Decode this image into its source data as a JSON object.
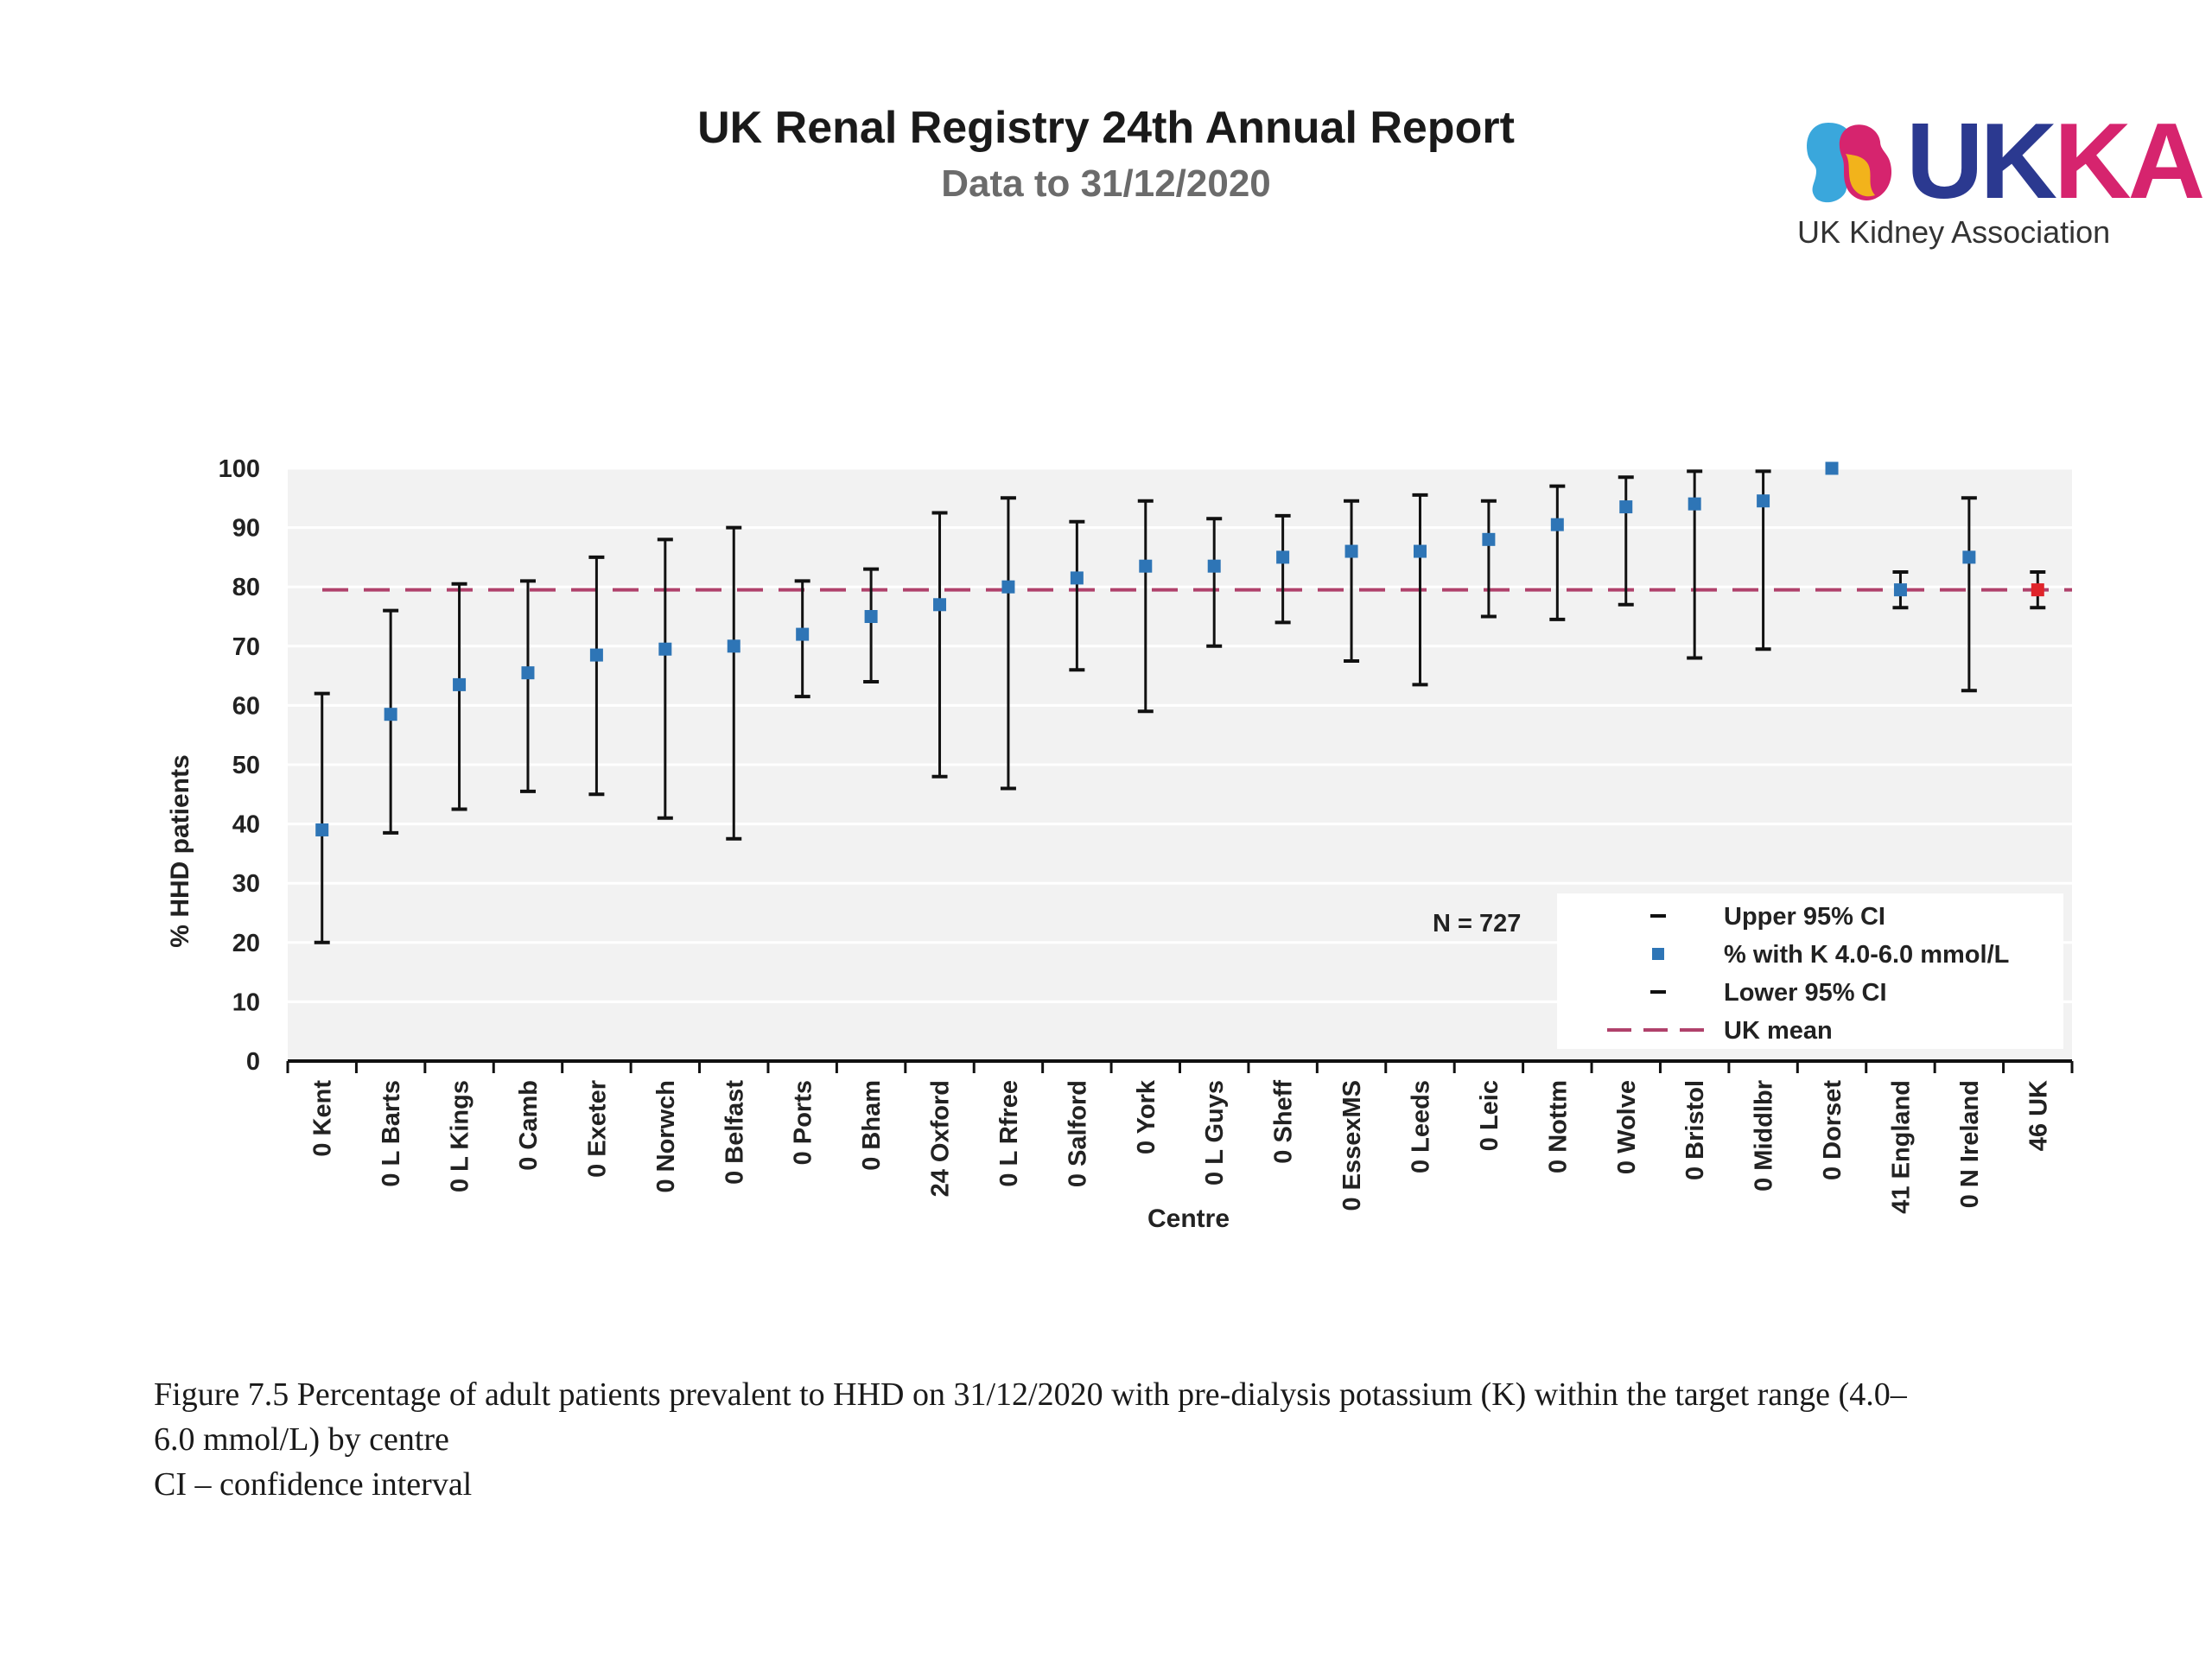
{
  "header": {
    "title": "UK Renal Registry 24th Annual Report",
    "subtitle": "Data to 31/12/2020"
  },
  "logo": {
    "wordmark": "UKKA",
    "name": "UK Kidney Association",
    "colors": [
      "#2b3990",
      "#d6246e",
      "#f2b31b",
      "#3aa7dc"
    ]
  },
  "chart_data": {
    "type": "scatter",
    "ylabel": "% HHD patients",
    "xlabel": "Centre",
    "ylim": [
      0,
      100
    ],
    "yticks": [
      0,
      10,
      20,
      30,
      40,
      50,
      60,
      70,
      80,
      90,
      100
    ],
    "grid": true,
    "legend_position": "bottom-right",
    "annotation": "N = 727",
    "uk_mean": 79.5,
    "categories": [
      "0 Kent",
      "0 L Barts",
      "0 L Kings",
      "0 Camb",
      "0 Exeter",
      "0 Norwch",
      "0 Belfast",
      "0 Ports",
      "0 Bham",
      "24 Oxford",
      "0 L Rfree",
      "0 Salford",
      "0 York",
      "0 L Guys",
      "0 Sheff",
      "0 EssexMS",
      "0 Leeds",
      "0 Leic",
      "0 Nottm",
      "0 Wolve",
      "0 Bristol",
      "0 Middlbr",
      "0 Dorset",
      "41 England",
      "0 N Ireland",
      "46 UK"
    ],
    "series": [
      {
        "name": "Upper 95% CI",
        "values": [
          62,
          76,
          80.5,
          81,
          85,
          88,
          90,
          81,
          83,
          92.5,
          95,
          91,
          94.5,
          91.5,
          92,
          94.5,
          95.5,
          94.5,
          97,
          98.5,
          99.5,
          99.5,
          null,
          82.5,
          95,
          82.5
        ]
      },
      {
        "name": "% with K 4.0-6.0 mmol/L",
        "values": [
          39,
          58.5,
          63.5,
          65.5,
          68.5,
          69.5,
          70,
          72,
          75,
          77,
          80,
          81.5,
          83.5,
          83.5,
          85,
          86,
          86,
          88,
          90.5,
          93.5,
          94,
          94.5,
          100,
          79.5,
          85,
          79.5
        ]
      },
      {
        "name": "Lower 95% CI",
        "values": [
          20,
          38.5,
          42.5,
          45.5,
          45,
          41,
          37.5,
          61.5,
          64,
          48,
          46,
          66,
          59,
          70,
          74,
          67.5,
          63.5,
          75,
          74.5,
          77,
          68,
          69.5,
          null,
          76.5,
          62.5,
          76.5
        ]
      }
    ],
    "mean_series_name": "UK mean",
    "colors": {
      "point": "#2e75b6",
      "uk_point": "#e0242a",
      "ci": "#111111",
      "mean": "#b0416b",
      "plot_bg": "#f2f2f2",
      "grid": "#ffffff"
    }
  },
  "caption": {
    "line1": "Figure 7.5 Percentage of adult patients prevalent to HHD on 31/12/2020 with pre-dialysis potassium (K) within the target range (4.0–",
    "line2": "6.0 mmol/L) by centre",
    "line3": "CI – confidence interval"
  }
}
